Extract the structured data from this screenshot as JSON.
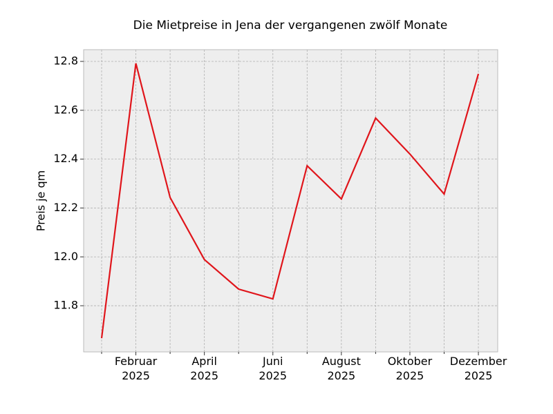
{
  "chart_data": {
    "type": "line",
    "title": "Die Mietpreise in Jena der vergangenen zwölf Monate",
    "y_label": "Preis je qm",
    "categories": [
      null,
      "Februar\n2025",
      null,
      "April\n2025",
      null,
      "Juni\n2025",
      null,
      "August\n2025",
      null,
      "Oktober\n2025",
      null,
      "Dezember\n2025"
    ],
    "series": [
      {
        "color": "#e0151b",
        "values": [
          11.667,
          12.792,
          12.243,
          11.989,
          11.868,
          11.828,
          12.373,
          12.237,
          12.568,
          12.421,
          12.257,
          12.749
        ]
      }
    ],
    "ylim": [
      11.611,
      12.848
    ],
    "yticks": [
      11.8,
      {
        "value": 12,
        "label": "12.0"
      },
      12.2,
      12.4,
      12.6,
      12.8
    ],
    "grid": true
  }
}
